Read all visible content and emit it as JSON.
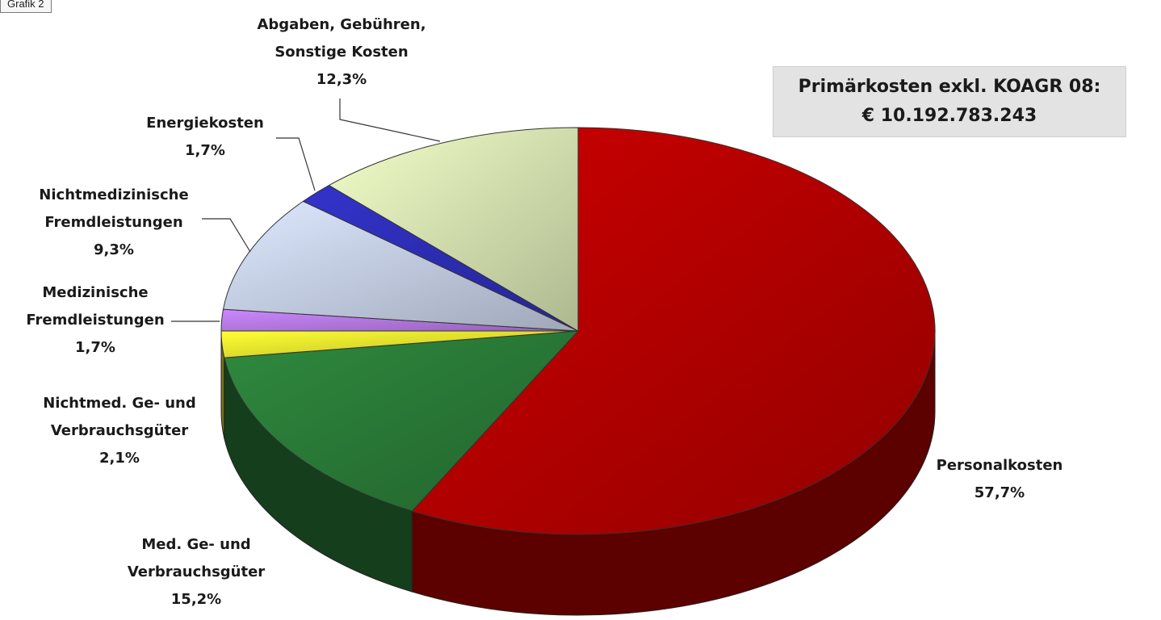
{
  "badge": "Grafik 2",
  "total": {
    "line1": "Primärkosten exkl. KOAGR 08:",
    "line2": "€  10.192.783.243"
  },
  "chart_data": {
    "type": "pie",
    "title": "",
    "slices": [
      {
        "label": [
          "Personalkosten"
        ],
        "value": 57.7,
        "value_label": "57,7%",
        "color": "#cc0000"
      },
      {
        "label": [
          "Med. Ge- und",
          "Verbrauchsgüter"
        ],
        "value": 15.2,
        "value_label": "15,2%",
        "color": "#2f8a3e"
      },
      {
        "label": [
          "Nichtmed. Ge- und",
          "Verbrauchsgüter"
        ],
        "value": 2.1,
        "value_label": "2,1%",
        "color": "#ffff33"
      },
      {
        "label": [
          "Medizinische",
          "Fremdleistungen"
        ],
        "value": 1.7,
        "value_label": "1,7%",
        "color": "#cc88ff"
      },
      {
        "label": [
          "Nichtmedizinische",
          "Fremdleistungen"
        ],
        "value": 9.3,
        "value_label": "9,3%",
        "color": "#dde8ff"
      },
      {
        "label": [
          "Energiekosten"
        ],
        "value": 1.7,
        "value_label": "1,7%",
        "color": "#3333cc"
      },
      {
        "label": [
          "Abgaben, Gebühren,",
          "Sonstige Kosten"
        ],
        "value": 12.3,
        "value_label": "12,3%",
        "color": "#f2ffc8"
      }
    ],
    "style": "3d-exploded-pie"
  }
}
